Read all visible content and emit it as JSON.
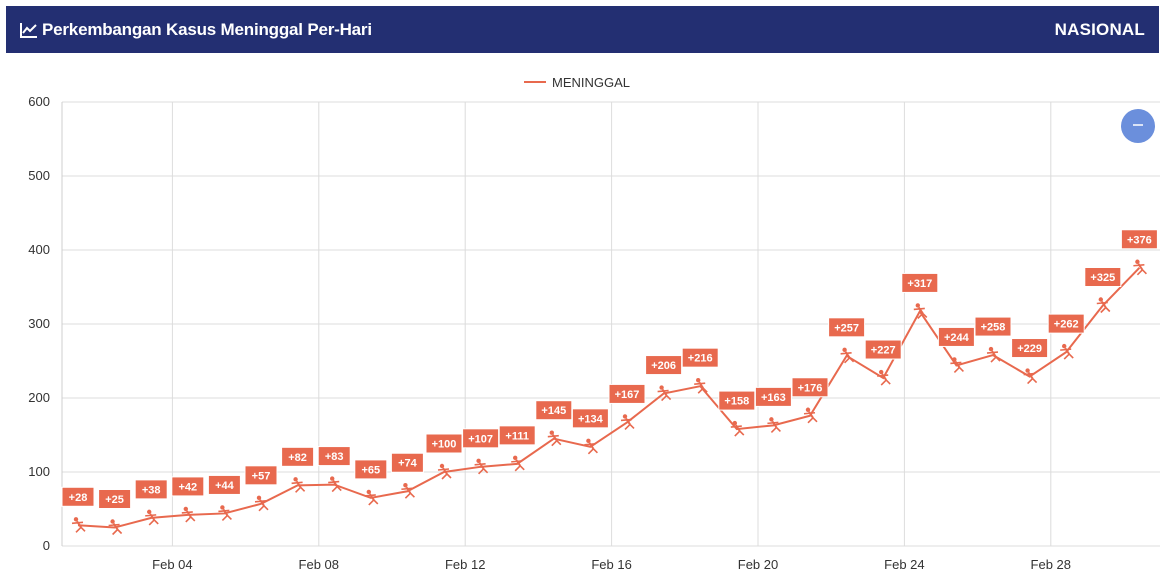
{
  "header": {
    "title": "Perkembangan Kasus Meninggal Per-Hari",
    "scope": "NASIONAL",
    "icon": "line-chart-icon",
    "background": "#232f72"
  },
  "zoom_button": {
    "icon": "minus-icon",
    "color": "#6b8fdc"
  },
  "chart_data": {
    "type": "line",
    "title": "",
    "xlabel": "",
    "ylabel": "",
    "ylim": [
      0,
      600
    ],
    "yticks": [
      0,
      100,
      200,
      300,
      400,
      500,
      600
    ],
    "xtick_labels": [
      "Feb 04",
      "Feb 08",
      "Feb 12",
      "Feb 16",
      "Feb 20",
      "Feb 24",
      "Feb 28"
    ],
    "x": [
      "Feb 01",
      "Feb 02",
      "Feb 03",
      "Feb 04",
      "Feb 05",
      "Feb 06",
      "Feb 07",
      "Feb 08",
      "Feb 09",
      "Feb 10",
      "Feb 11",
      "Feb 12",
      "Feb 13",
      "Feb 14",
      "Feb 15",
      "Feb 16",
      "Feb 17",
      "Feb 18",
      "Feb 19",
      "Feb 20",
      "Feb 21",
      "Feb 22",
      "Feb 23",
      "Feb 24",
      "Feb 25",
      "Feb 26",
      "Feb 27",
      "Feb 28",
      "Mar 01",
      "Mar 02"
    ],
    "series": [
      {
        "name": "MENINGGAL",
        "color": "#e8694e",
        "values": [
          28,
          25,
          38,
          42,
          44,
          57,
          82,
          83,
          65,
          74,
          100,
          107,
          111,
          145,
          134,
          167,
          206,
          216,
          158,
          163,
          176,
          257,
          227,
          317,
          244,
          258,
          229,
          262,
          325,
          376
        ],
        "labels": [
          "+28",
          "+25",
          "+38",
          "+42",
          "+44",
          "+57",
          "+82",
          "+83",
          "+65",
          "+74",
          "+100",
          "+107",
          "+111",
          "+145",
          "+134",
          "+167",
          "+206",
          "+216",
          "+158",
          "+163",
          "+176",
          "+257",
          "+227",
          "+317",
          "+244",
          "+258",
          "+229",
          "+262",
          "+325",
          "+376"
        ]
      }
    ],
    "legend": "top-center",
    "grid": true,
    "marker_icon": "person-falling-icon"
  }
}
